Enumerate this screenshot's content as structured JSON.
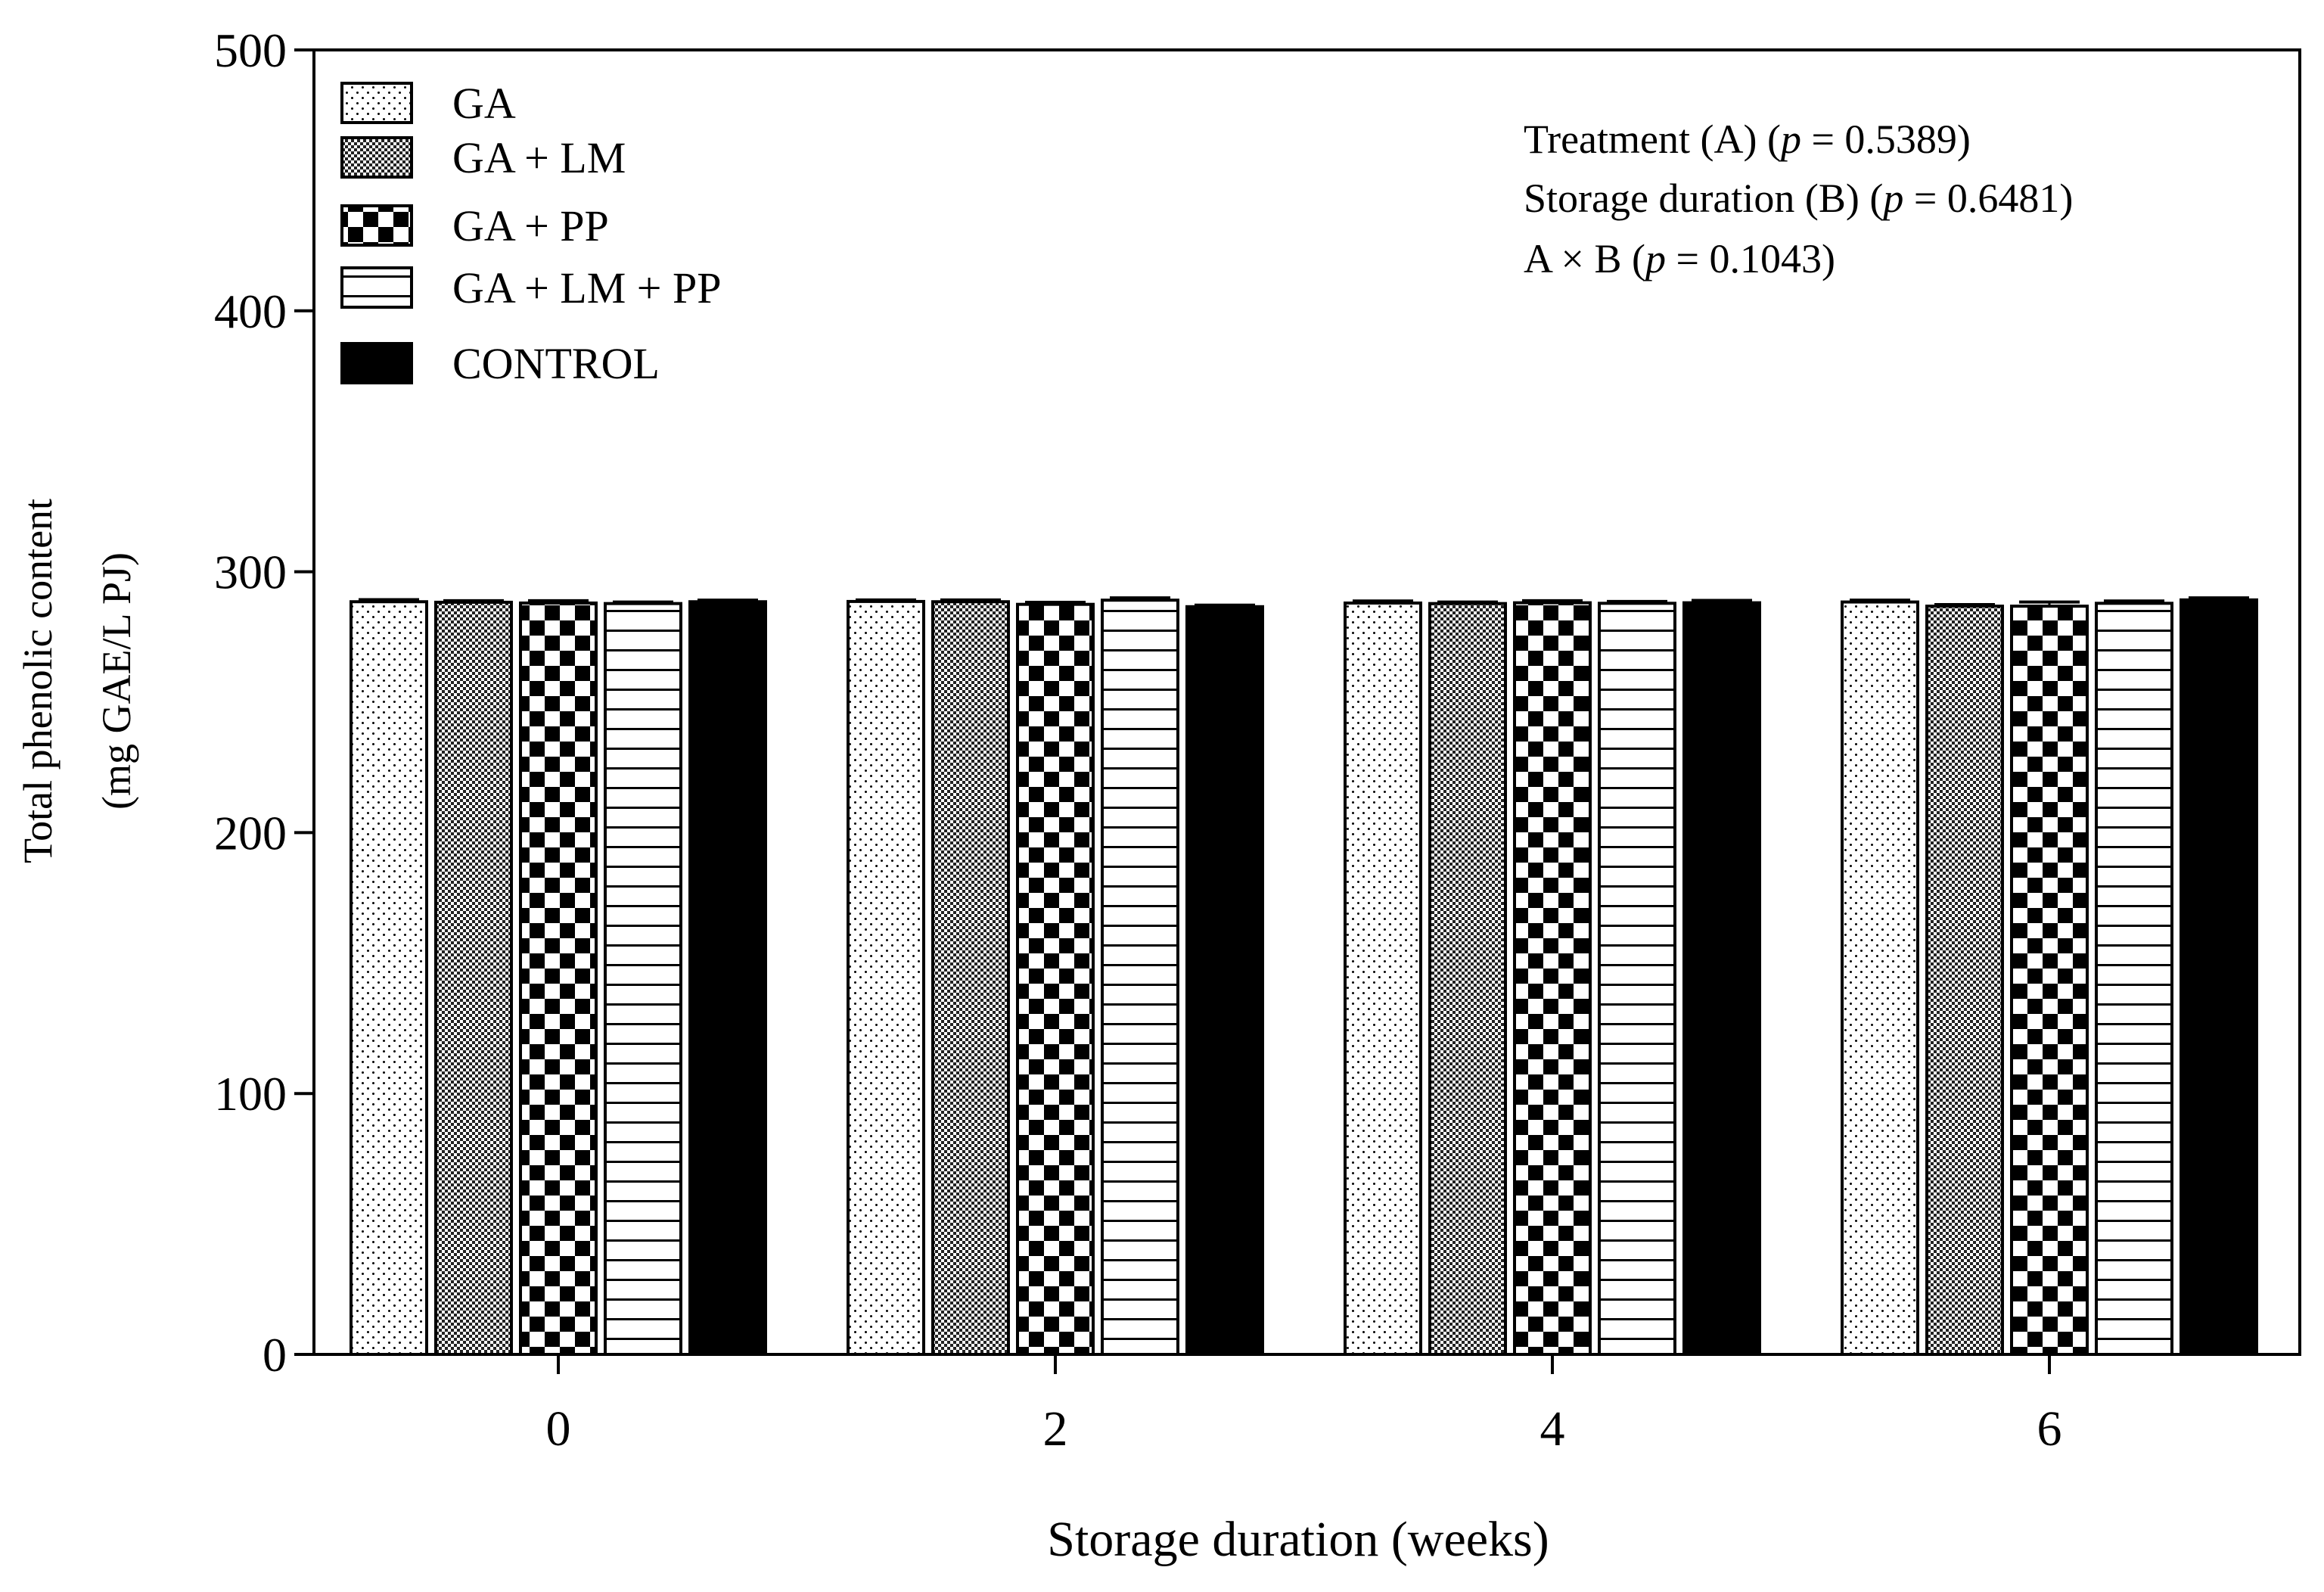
{
  "chart_data": {
    "type": "bar",
    "title": "",
    "xlabel": "Storage duration (weeks)",
    "ylabel_lines": [
      "Total phenolic content",
      "(mg GAE/L PJ)"
    ],
    "categories": [
      "0",
      "2",
      "4",
      "6"
    ],
    "ylim": [
      0,
      500
    ],
    "yticks": [
      0,
      100,
      200,
      300,
      400,
      500
    ],
    "yticks_labels": [
      "0",
      "100",
      "200",
      "300",
      "400",
      "500"
    ],
    "grid": false,
    "legend_position": "top-left",
    "series": [
      {
        "name": "GA",
        "pattern": "dots",
        "values": [
          288.5,
          288.6,
          288.0,
          288.4
        ],
        "errors": [
          0.8,
          0.6,
          0.8,
          0.7
        ]
      },
      {
        "name": "GA + LM",
        "pattern": "fine-checker",
        "values": [
          288.3,
          288.5,
          287.8,
          286.8
        ],
        "errors": [
          0.6,
          0.7,
          0.6,
          0.6
        ]
      },
      {
        "name": "GA + PP",
        "pattern": "checker",
        "values": [
          288.0,
          287.5,
          288.1,
          286.8
        ],
        "errors": [
          0.9,
          0.8,
          0.8,
          1.6
        ]
      },
      {
        "name": "GA + LM + PP",
        "pattern": "hlines",
        "values": [
          287.8,
          289.1,
          287.9,
          287.9
        ],
        "errors": [
          0.6,
          0.9,
          0.7,
          0.9
        ]
      },
      {
        "name": "CONTROL",
        "pattern": "solid",
        "values": [
          288.5,
          286.6,
          288.1,
          289.2
        ],
        "errors": [
          0.6,
          0.6,
          0.9,
          0.8
        ]
      }
    ],
    "annotations": [
      {
        "label": "Treatment (A) (",
        "p_symbol": "p",
        "value": " = 0.5389)"
      },
      {
        "label": "Storage duration  (B) (",
        "p_symbol": "p",
        "value": " = 0.6481)"
      },
      {
        "label": "A × B   (",
        "p_symbol": "p",
        "value": " = 0.1043)"
      }
    ]
  }
}
